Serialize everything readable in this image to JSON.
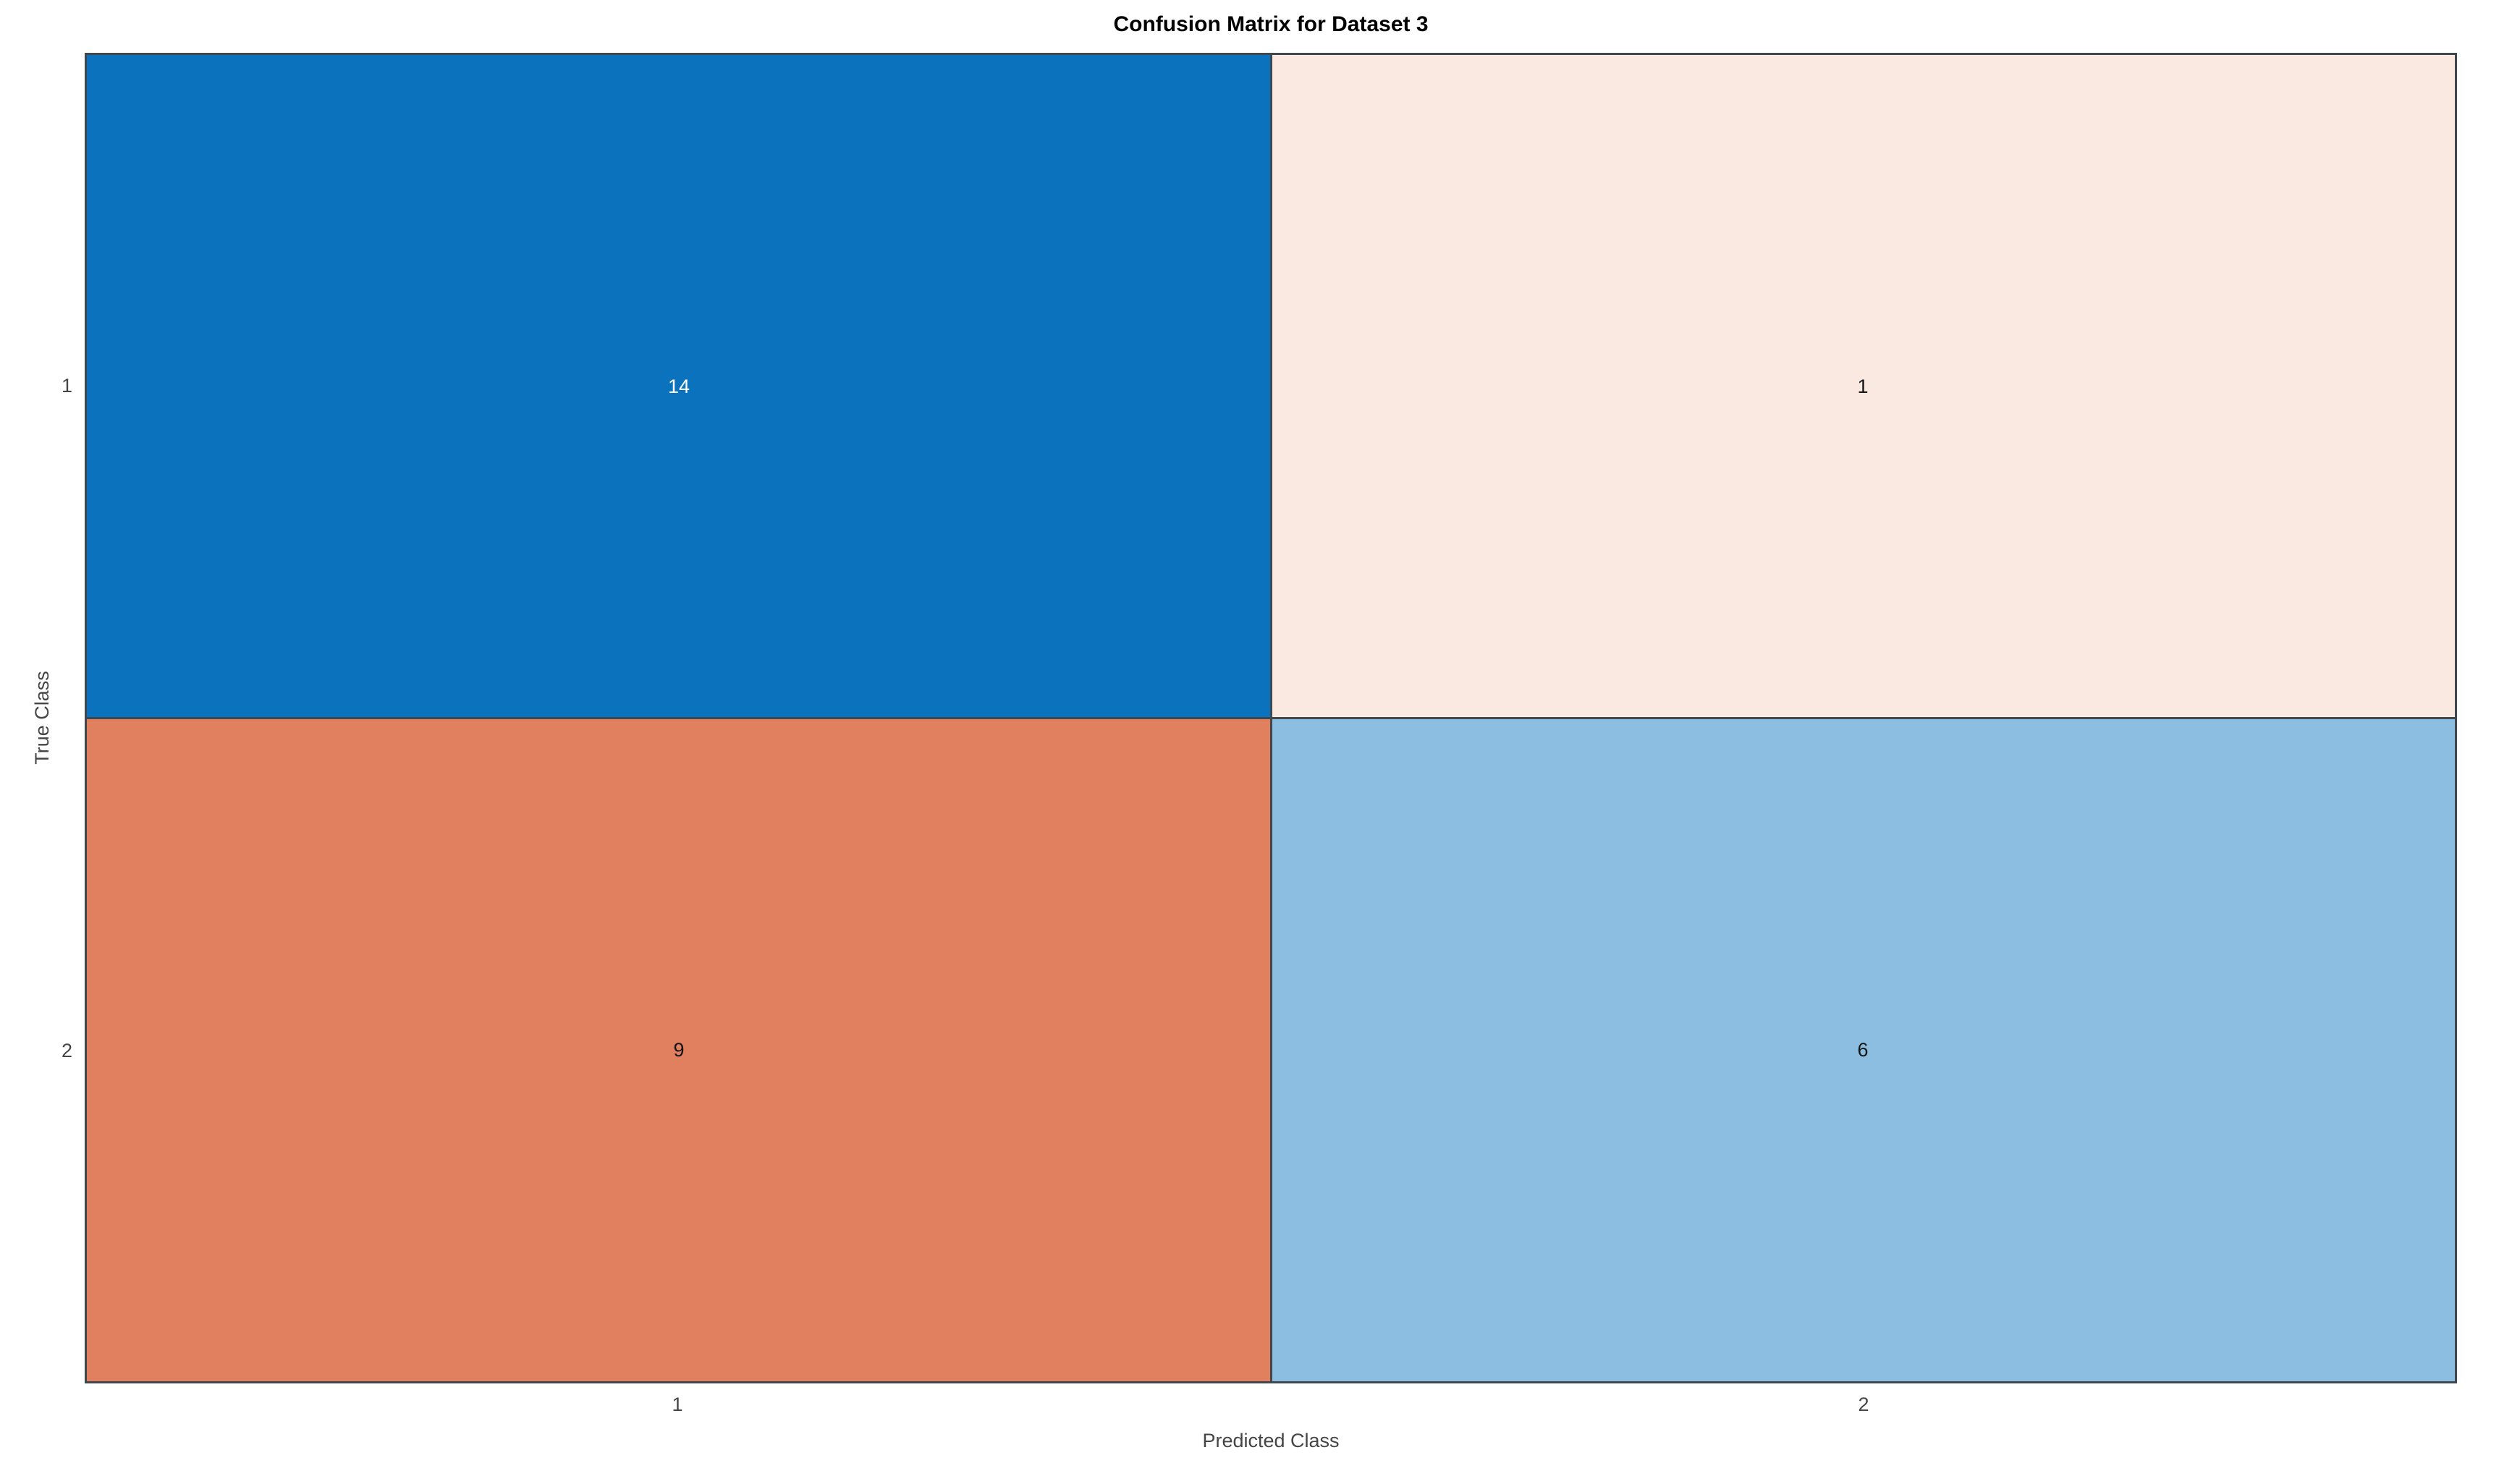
{
  "figure": {
    "background": "#FFFFFF"
  },
  "chart_data": {
    "type": "heatmap",
    "title": "Confusion Matrix for Dataset 3",
    "xlabel": "Predicted Class",
    "ylabel": "True Class",
    "x_tick_labels": [
      "1",
      "2"
    ],
    "y_tick_labels": [
      "1",
      "2"
    ],
    "matrix": [
      [
        14,
        1
      ],
      [
        9,
        6
      ]
    ],
    "cells": [
      {
        "true_class": "1",
        "predicted_class": "1",
        "value": "14",
        "bg": "#0B72BD",
        "fg": "#FFFFFF"
      },
      {
        "true_class": "1",
        "predicted_class": "2",
        "value": "1",
        "bg": "#FAE9E1",
        "fg": "#141414"
      },
      {
        "true_class": "2",
        "predicted_class": "1",
        "value": "9",
        "bg": "#E0805F",
        "fg": "#141414"
      },
      {
        "true_class": "2",
        "predicted_class": "2",
        "value": "6",
        "bg": "#8BBEE0",
        "fg": "#141414"
      }
    ],
    "grid_line_color": "#3F474F",
    "title_color": "#000000",
    "axis_text_color": "#454545",
    "legend": "none",
    "layout": {
      "rows": 2,
      "cols": 2,
      "grid": "on"
    }
  }
}
